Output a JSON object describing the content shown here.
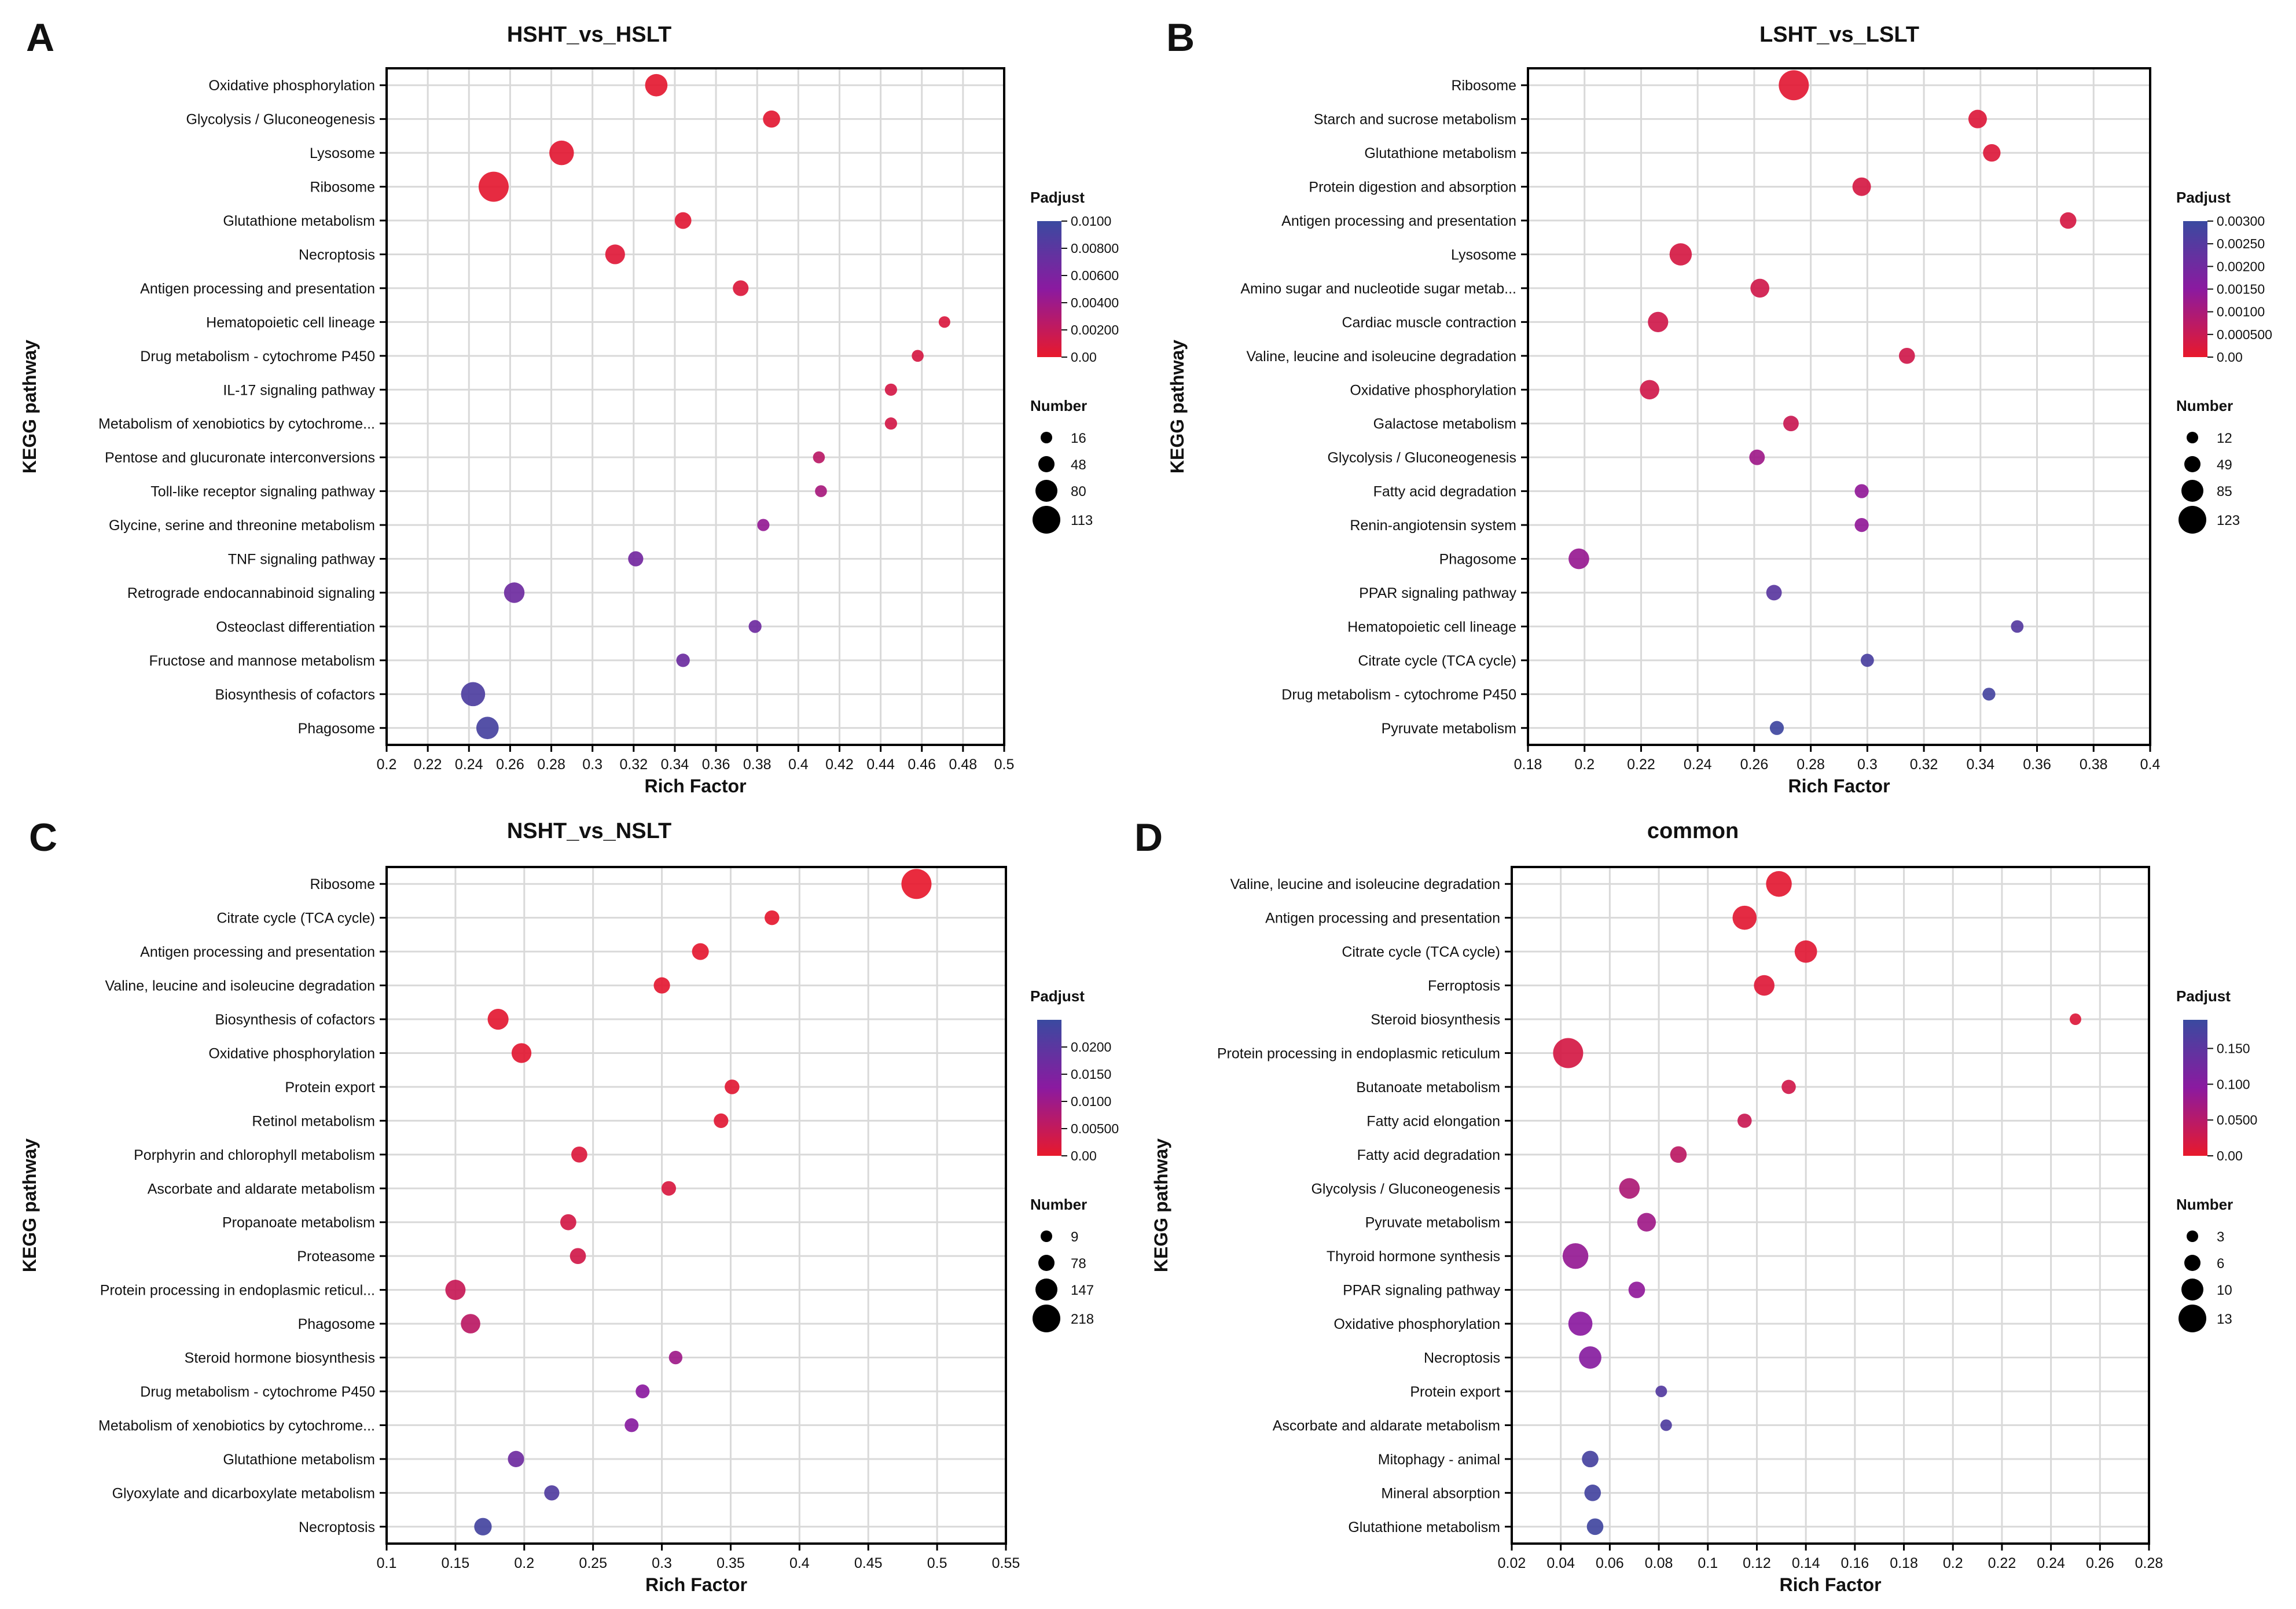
{
  "figure": {
    "colors": {
      "low": "#e8192c",
      "mid": "#8b1aa0",
      "high": "#3a4aa0",
      "grid": "#d9d9d9",
      "axis": "#000000"
    }
  },
  "chart_data": [
    {
      "type": "scatter",
      "panel_letter": "A",
      "title": "HSHT_vs_HSLT",
      "xlabel": "Rich Factor",
      "ylabel": "KEGG pathway",
      "xlim": [
        0.2,
        0.5
      ],
      "x_ticks": [
        0.2,
        0.22,
        0.24,
        0.26,
        0.28,
        0.3,
        0.32,
        0.34,
        0.36,
        0.38,
        0.4,
        0.42,
        0.44,
        0.46,
        0.48,
        0.5
      ],
      "x_tick_labels": [
        "0.2",
        "0.22",
        "0.24",
        "0.26",
        "0.28",
        "0.3",
        "0.32",
        "0.34",
        "0.36",
        "0.38",
        "0.4",
        "0.42",
        "0.44",
        "0.46",
        "0.48",
        "0.5"
      ],
      "color_legend": {
        "title": "Padjust",
        "range": [
          0,
          0.01
        ],
        "ticks": [
          0,
          0.002,
          0.004,
          0.006,
          0.008,
          0.01
        ],
        "tick_labels": [
          "0.00",
          "0.00200",
          "0.00400",
          "0.00600",
          "0.00800",
          "0.0100"
        ]
      },
      "size_legend": {
        "title": "Number",
        "min": 16,
        "max": 113,
        "values": [
          16,
          48,
          80,
          113
        ],
        "labels": [
          "16",
          "48",
          "80",
          "113"
        ]
      },
      "points": [
        {
          "pathway": "Oxidative phosphorylation",
          "rich_factor": 0.331,
          "number": 62,
          "padjust": 0.0002
        },
        {
          "pathway": "Glycolysis / Gluconeogenesis",
          "rich_factor": 0.387,
          "number": 36,
          "padjust": 0.0003
        },
        {
          "pathway": "Lysosome",
          "rich_factor": 0.285,
          "number": 75,
          "padjust": 0.0003
        },
        {
          "pathway": "Ribosome",
          "rich_factor": 0.252,
          "number": 113,
          "padjust": 0.0002
        },
        {
          "pathway": "Glutathione metabolism",
          "rich_factor": 0.344,
          "number": 34,
          "padjust": 0.0004
        },
        {
          "pathway": "Necroptosis",
          "rich_factor": 0.311,
          "number": 48,
          "padjust": 0.0005
        },
        {
          "pathway": "Antigen processing and presentation",
          "rich_factor": 0.372,
          "number": 30,
          "padjust": 0.0007
        },
        {
          "pathway": "Hematopoietic cell lineage",
          "rich_factor": 0.471,
          "number": 16,
          "padjust": 0.0008
        },
        {
          "pathway": "Drug metabolism - cytochrome P450",
          "rich_factor": 0.458,
          "number": 17,
          "padjust": 0.001
        },
        {
          "pathway": "IL-17 signaling pathway",
          "rich_factor": 0.445,
          "number": 18,
          "padjust": 0.0011
        },
        {
          "pathway": "Metabolism of xenobiotics by cytochrome...",
          "rich_factor": 0.445,
          "number": 18,
          "padjust": 0.0012
        },
        {
          "pathway": "Pentose and glucuronate interconversions",
          "rich_factor": 0.41,
          "number": 17,
          "padjust": 0.0025
        },
        {
          "pathway": "Toll-like receptor signaling pathway",
          "rich_factor": 0.411,
          "number": 17,
          "padjust": 0.0035
        },
        {
          "pathway": "Glycine, serine and threonine metabolism",
          "rich_factor": 0.383,
          "number": 18,
          "padjust": 0.0045
        },
        {
          "pathway": "TNF signaling pathway",
          "rich_factor": 0.321,
          "number": 28,
          "padjust": 0.0065
        },
        {
          "pathway": "Retrograde endocannabinoid signaling",
          "rich_factor": 0.262,
          "number": 52,
          "padjust": 0.0068
        },
        {
          "pathway": "Osteoclast differentiation",
          "rich_factor": 0.379,
          "number": 20,
          "padjust": 0.0068
        },
        {
          "pathway": "Fructose and mannose metabolism",
          "rich_factor": 0.344,
          "number": 22,
          "padjust": 0.007
        },
        {
          "pathway": "Biosynthesis of cofactors",
          "rich_factor": 0.242,
          "number": 72,
          "padjust": 0.0088
        },
        {
          "pathway": "Phagosome",
          "rich_factor": 0.249,
          "number": 62,
          "padjust": 0.0092
        }
      ]
    },
    {
      "type": "scatter",
      "panel_letter": "B",
      "title": "LSHT_vs_LSLT",
      "xlabel": "Rich Factor",
      "ylabel": "KEGG pathway",
      "xlim": [
        0.18,
        0.4
      ],
      "x_ticks": [
        0.18,
        0.2,
        0.22,
        0.24,
        0.26,
        0.28,
        0.3,
        0.32,
        0.34,
        0.36,
        0.38,
        0.4
      ],
      "x_tick_labels": [
        "0.18",
        "0.2",
        "0.22",
        "0.24",
        "0.26",
        "0.28",
        "0.3",
        "0.32",
        "0.34",
        "0.36",
        "0.38",
        "0.4"
      ],
      "color_legend": {
        "title": "Padjust",
        "range": [
          0,
          0.003
        ],
        "ticks": [
          0,
          0.0005,
          0.001,
          0.0015,
          0.002,
          0.0025,
          0.003
        ],
        "tick_labels": [
          "0.00",
          "0.000500",
          "0.00100",
          "0.00150",
          "0.00200",
          "0.00250",
          "0.00300"
        ]
      },
      "size_legend": {
        "title": "Number",
        "min": 12,
        "max": 123,
        "values": [
          12,
          49,
          85,
          123
        ],
        "labels": [
          "12",
          "49",
          "85",
          "123"
        ]
      },
      "points": [
        {
          "pathway": "Ribosome",
          "rich_factor": 0.274,
          "number": 123,
          "padjust": 0.0001
        },
        {
          "pathway": "Starch and sucrose metabolism",
          "rich_factor": 0.339,
          "number": 40,
          "padjust": 0.0002
        },
        {
          "pathway": "Glutathione metabolism",
          "rich_factor": 0.344,
          "number": 35,
          "padjust": 0.0002
        },
        {
          "pathway": "Protein digestion and absorption",
          "rich_factor": 0.298,
          "number": 40,
          "padjust": 0.0003
        },
        {
          "pathway": "Antigen processing and presentation",
          "rich_factor": 0.371,
          "number": 30,
          "padjust": 0.0003
        },
        {
          "pathway": "Lysosome",
          "rich_factor": 0.234,
          "number": 62,
          "padjust": 0.0003
        },
        {
          "pathway": "Amino sugar and nucleotide sugar metab...",
          "rich_factor": 0.262,
          "number": 42,
          "padjust": 0.0004
        },
        {
          "pathway": "Cardiac muscle contraction",
          "rich_factor": 0.226,
          "number": 50,
          "padjust": 0.0004
        },
        {
          "pathway": "Valine, leucine and isoleucine degradation",
          "rich_factor": 0.314,
          "number": 28,
          "padjust": 0.0004
        },
        {
          "pathway": "Oxidative phosphorylation",
          "rich_factor": 0.223,
          "number": 45,
          "padjust": 0.0004
        },
        {
          "pathway": "Galactose metabolism",
          "rich_factor": 0.273,
          "number": 26,
          "padjust": 0.0005
        },
        {
          "pathway": "Glycolysis / Gluconeogenesis",
          "rich_factor": 0.261,
          "number": 26,
          "padjust": 0.0012
        },
        {
          "pathway": "Fatty acid degradation",
          "rich_factor": 0.298,
          "number": 20,
          "padjust": 0.0014
        },
        {
          "pathway": "Renin-angiotensin system",
          "rich_factor": 0.298,
          "number": 20,
          "padjust": 0.0014
        },
        {
          "pathway": "Phagosome",
          "rich_factor": 0.198,
          "number": 52,
          "padjust": 0.0013
        },
        {
          "pathway": "PPAR signaling pathway",
          "rich_factor": 0.267,
          "number": 26,
          "padjust": 0.0024
        },
        {
          "pathway": "Hematopoietic cell lineage",
          "rich_factor": 0.353,
          "number": 15,
          "padjust": 0.0025
        },
        {
          "pathway": "Citrate cycle (TCA cycle)",
          "rich_factor": 0.3,
          "number": 17,
          "padjust": 0.0027
        },
        {
          "pathway": "Drug metabolism - cytochrome P450",
          "rich_factor": 0.343,
          "number": 16,
          "padjust": 0.0028
        },
        {
          "pathway": "Pyruvate metabolism",
          "rich_factor": 0.268,
          "number": 20,
          "padjust": 0.0029
        }
      ]
    },
    {
      "type": "scatter",
      "panel_letter": "C",
      "title": "NSHT_vs_NSLT",
      "xlabel": "Rich Factor",
      "ylabel": "KEGG pathway",
      "xlim": [
        0.1,
        0.55
      ],
      "x_ticks": [
        0.1,
        0.15,
        0.2,
        0.25,
        0.3,
        0.35,
        0.4,
        0.45,
        0.5,
        0.55
      ],
      "x_tick_labels": [
        "0.1",
        "0.15",
        "0.2",
        "0.25",
        "0.3",
        "0.35",
        "0.4",
        "0.45",
        "0.5",
        "0.55"
      ],
      "color_legend": {
        "title": "Padjust",
        "range": [
          0,
          0.025
        ],
        "ticks": [
          0,
          0.005,
          0.01,
          0.015,
          0.02
        ],
        "tick_labels": [
          "0.00",
          "0.00500",
          "0.0100",
          "0.0150",
          "0.0200"
        ]
      },
      "size_legend": {
        "title": "Number",
        "min": 9,
        "max": 218,
        "values": [
          9,
          78,
          147,
          218
        ],
        "labels": [
          "9",
          "78",
          "147",
          "218"
        ]
      },
      "points": [
        {
          "pathway": "Ribosome",
          "rich_factor": 0.485,
          "number": 218,
          "padjust": 0.0002
        },
        {
          "pathway": "Citrate cycle (TCA cycle)",
          "rich_factor": 0.38,
          "number": 25,
          "padjust": 0.0004
        },
        {
          "pathway": "Antigen processing and presentation",
          "rich_factor": 0.328,
          "number": 40,
          "padjust": 0.0005
        },
        {
          "pathway": "Valine, leucine and isoleucine degradation",
          "rich_factor": 0.3,
          "number": 36,
          "padjust": 0.0006
        },
        {
          "pathway": "Biosynthesis of cofactors",
          "rich_factor": 0.181,
          "number": 80,
          "padjust": 0.0007
        },
        {
          "pathway": "Oxidative phosphorylation",
          "rich_factor": 0.198,
          "number": 68,
          "padjust": 0.0008
        },
        {
          "pathway": "Protein export",
          "rich_factor": 0.351,
          "number": 25,
          "padjust": 0.0009
        },
        {
          "pathway": "Retinol metabolism",
          "rich_factor": 0.343,
          "number": 24,
          "padjust": 0.001
        },
        {
          "pathway": "Porphyrin and chlorophyll metabolism",
          "rich_factor": 0.24,
          "number": 34,
          "padjust": 0.0018
        },
        {
          "pathway": "Ascorbate and aldarate metabolism",
          "rich_factor": 0.305,
          "number": 24,
          "padjust": 0.0022
        },
        {
          "pathway": "Propanoate metabolism",
          "rich_factor": 0.232,
          "number": 34,
          "padjust": 0.0028
        },
        {
          "pathway": "Proteasome",
          "rich_factor": 0.239,
          "number": 34,
          "padjust": 0.0032
        },
        {
          "pathway": "Protein processing in endoplasmic reticul...",
          "rich_factor": 0.15,
          "number": 72,
          "padjust": 0.0045
        },
        {
          "pathway": "Phagosome",
          "rich_factor": 0.161,
          "number": 64,
          "padjust": 0.006
        },
        {
          "pathway": "Steroid hormone biosynthesis",
          "rich_factor": 0.31,
          "number": 18,
          "padjust": 0.01
        },
        {
          "pathway": "Drug metabolism - cytochrome P450",
          "rich_factor": 0.286,
          "number": 20,
          "padjust": 0.0125
        },
        {
          "pathway": "Metabolism of xenobiotics by cytochrome...",
          "rich_factor": 0.278,
          "number": 20,
          "padjust": 0.013
        },
        {
          "pathway": "Glutathione metabolism",
          "rich_factor": 0.194,
          "number": 36,
          "padjust": 0.017
        },
        {
          "pathway": "Glyoxylate and dicarboxylate metabolism",
          "rich_factor": 0.22,
          "number": 28,
          "padjust": 0.0215
        },
        {
          "pathway": "Necroptosis",
          "rich_factor": 0.17,
          "number": 46,
          "padjust": 0.0235
        }
      ]
    },
    {
      "type": "scatter",
      "panel_letter": "D",
      "title": "common",
      "xlabel": "Rich Factor",
      "ylabel": "KEGG pathway",
      "xlim": [
        0.02,
        0.28
      ],
      "x_ticks": [
        0.02,
        0.04,
        0.06,
        0.08,
        0.1,
        0.12,
        0.14,
        0.16,
        0.18,
        0.2,
        0.22,
        0.24,
        0.26,
        0.28
      ],
      "x_tick_labels": [
        "0.02",
        "0.04",
        "0.06",
        "0.08",
        "0.1",
        "0.12",
        "0.14",
        "0.16",
        "0.18",
        "0.2",
        "0.22",
        "0.24",
        "0.26",
        "0.28"
      ],
      "color_legend": {
        "title": "Padjust",
        "range": [
          0,
          0.19
        ],
        "ticks": [
          0,
          0.05,
          0.1,
          0.15
        ],
        "tick_labels": [
          "0.00",
          "0.0500",
          "0.100",
          "0.150"
        ]
      },
      "size_legend": {
        "title": "Number",
        "min": 3,
        "max": 13,
        "values": [
          3,
          6,
          10,
          13
        ],
        "labels": [
          "3",
          "6",
          "10",
          "13"
        ]
      },
      "points": [
        {
          "pathway": "Valine, leucine and isoleucine degradation",
          "rich_factor": 0.129,
          "number": 10,
          "padjust": 0.005
        },
        {
          "pathway": "Antigen processing and presentation",
          "rich_factor": 0.115,
          "number": 9,
          "padjust": 0.006
        },
        {
          "pathway": "Citrate cycle (TCA cycle)",
          "rich_factor": 0.14,
          "number": 8,
          "padjust": 0.007
        },
        {
          "pathway": "Ferroptosis",
          "rich_factor": 0.123,
          "number": 7,
          "padjust": 0.01
        },
        {
          "pathway": "Steroid biosynthesis",
          "rich_factor": 0.25,
          "number": 3,
          "padjust": 0.012
        },
        {
          "pathway": "Protein processing in endoplasmic reticulum",
          "rich_factor": 0.043,
          "number": 13,
          "padjust": 0.02
        },
        {
          "pathway": "Butanoate metabolism",
          "rich_factor": 0.133,
          "number": 4,
          "padjust": 0.025
        },
        {
          "pathway": "Fatty acid elongation",
          "rich_factor": 0.115,
          "number": 4,
          "padjust": 0.032
        },
        {
          "pathway": "Fatty acid degradation",
          "rich_factor": 0.088,
          "number": 5,
          "padjust": 0.045
        },
        {
          "pathway": "Glycolysis / Gluconeogenesis",
          "rich_factor": 0.068,
          "number": 7,
          "padjust": 0.06
        },
        {
          "pathway": "Pyruvate metabolism",
          "rich_factor": 0.075,
          "number": 6,
          "padjust": 0.075
        },
        {
          "pathway": "Thyroid hormone synthesis",
          "rich_factor": 0.046,
          "number": 10,
          "padjust": 0.085
        },
        {
          "pathway": "PPAR signaling pathway",
          "rich_factor": 0.071,
          "number": 5,
          "padjust": 0.09
        },
        {
          "pathway": "Oxidative phosphorylation",
          "rich_factor": 0.048,
          "number": 9,
          "padjust": 0.095
        },
        {
          "pathway": "Necroptosis",
          "rich_factor": 0.052,
          "number": 8,
          "padjust": 0.1
        },
        {
          "pathway": "Protein export",
          "rich_factor": 0.081,
          "number": 3,
          "padjust": 0.16
        },
        {
          "pathway": "Ascorbate and aldarate metabolism",
          "rich_factor": 0.083,
          "number": 3,
          "padjust": 0.165
        },
        {
          "pathway": "Mitophagy - animal",
          "rich_factor": 0.052,
          "number": 5,
          "padjust": 0.175
        },
        {
          "pathway": "Mineral absorption",
          "rich_factor": 0.053,
          "number": 5,
          "padjust": 0.178
        },
        {
          "pathway": "Glutathione metabolism",
          "rich_factor": 0.054,
          "number": 5,
          "padjust": 0.182
        }
      ]
    }
  ]
}
